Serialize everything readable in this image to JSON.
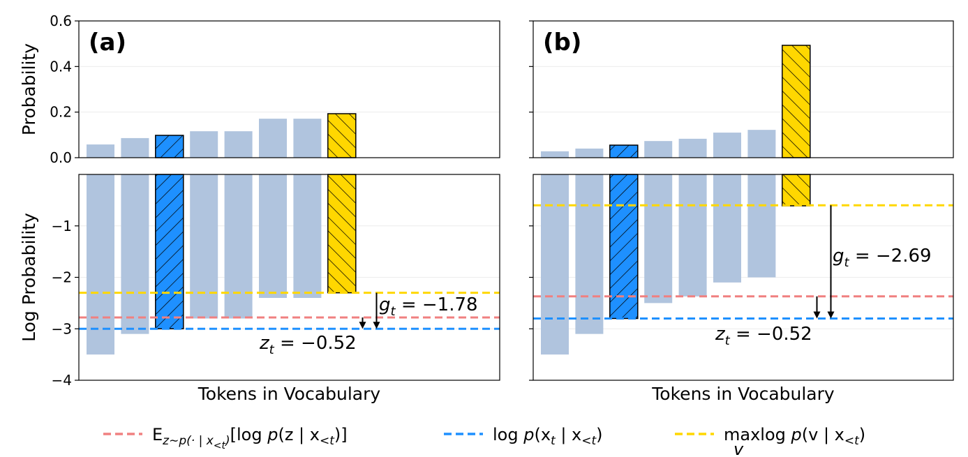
{
  "chart_data": [
    {
      "type": "bar",
      "panel_label": "(a)",
      "xlabel": "Tokens in Vocabulary",
      "top": {
        "ylabel": "Probability",
        "ylim": [
          0,
          0.6
        ],
        "yticks": [
          "0.0",
          "0.2",
          "0.4",
          "0.6"
        ],
        "values": [
          0.058,
          0.086,
          0.098,
          0.116,
          0.116,
          0.171,
          0.171,
          0.193
        ]
      },
      "bottom": {
        "ylabel": "Log Probability",
        "ylim": [
          -4,
          0
        ],
        "yticks": [
          "−4",
          "−3",
          "−2",
          "−1"
        ],
        "values": [
          -3.5,
          -3.1,
          -3.0,
          -2.8,
          -2.8,
          -2.4,
          -2.4,
          -2.3
        ]
      },
      "highlight": {
        "target_index": 2,
        "max_index": 7
      },
      "reference_lines": {
        "expected": -2.78,
        "target": -3.0,
        "max": -2.3
      },
      "annotations": [
        {
          "var": "g",
          "sub": "t",
          "text": " = −1.78"
        },
        {
          "var": "z",
          "sub": "t",
          "text": " = −0.52"
        }
      ],
      "grid": true
    },
    {
      "type": "bar",
      "panel_label": "(b)",
      "xlabel": "Tokens in Vocabulary",
      "top": {
        "ylim": [
          0,
          0.6
        ],
        "values": [
          0.028,
          0.04,
          0.055,
          0.073,
          0.083,
          0.11,
          0.122,
          0.493
        ]
      },
      "bottom": {
        "ylim": [
          -4,
          0
        ],
        "values": [
          -3.5,
          -3.1,
          -2.8,
          -2.5,
          -2.37,
          -2.1,
          -2.0,
          -0.61
        ]
      },
      "highlight": {
        "target_index": 2,
        "max_index": 7
      },
      "reference_lines": {
        "expected": -2.37,
        "target": -2.8,
        "max": -0.6
      },
      "annotations": [
        {
          "var": "g",
          "sub": "t",
          "text": " = −2.69"
        },
        {
          "var": "z",
          "sub": "t",
          "text": " = −0.52"
        }
      ],
      "grid": true
    }
  ],
  "legend": {
    "position": "bottom",
    "entries": [
      {
        "key": "expected",
        "color": "#f08080",
        "segments": [
          {
            "t": "E"
          },
          {
            "t": "z∼p(· | x",
            "sub": true
          },
          {
            "t": "<t",
            "subsub": true
          },
          {
            "t": ")",
            "sub": true
          },
          {
            "t": "[log "
          },
          {
            "t": "p",
            "i": true
          },
          {
            "t": "(z | x"
          },
          {
            "t": "<t",
            "sub": true
          },
          {
            "t": ")]"
          }
        ]
      },
      {
        "key": "target",
        "color": "#1e90ff",
        "segments": [
          {
            "t": "log "
          },
          {
            "t": "p",
            "i": true
          },
          {
            "t": "(x"
          },
          {
            "t": "t",
            "sub": true
          },
          {
            "t": " | x"
          },
          {
            "t": "<t",
            "sub": true
          },
          {
            "t": ")"
          }
        ]
      },
      {
        "key": "max",
        "color": "#ffd700",
        "segments": [
          {
            "t": "max"
          },
          {
            "t": "log "
          },
          {
            "t": "p",
            "i": true
          },
          {
            "t": "(v | x"
          },
          {
            "t": "<t",
            "sub": true
          },
          {
            "t": ")"
          }
        ],
        "under": "v"
      }
    ]
  },
  "colors": {
    "bar": "#b0c4de",
    "target": "#1e90ff",
    "max": "#ffd700",
    "expected": "#f08080"
  }
}
